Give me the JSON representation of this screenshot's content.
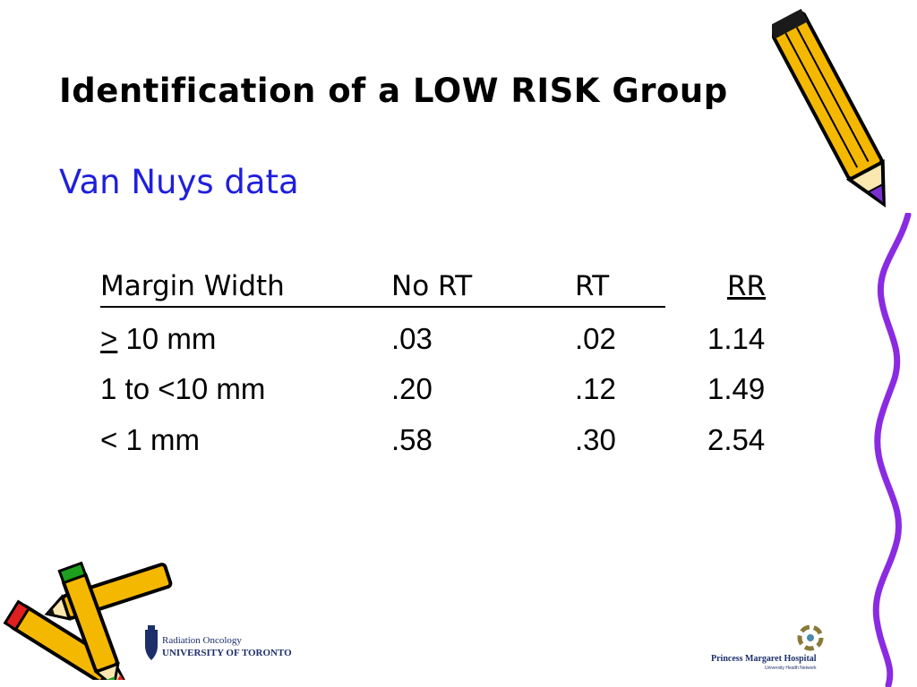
{
  "slide": {
    "title": "Identification of a LOW RISK Group",
    "subtitle": "Van Nuys data",
    "colors": {
      "subtitle": "#1f1fdd",
      "squiggle": "#8a2be2",
      "pencil_body": "#f5b800",
      "pencil_tip": "#7a2fd0"
    }
  },
  "table": {
    "headers": [
      "Margin Width",
      "No RT",
      "RT",
      "RR"
    ],
    "rows": [
      {
        "symbol": ">",
        "margin": " 10 mm",
        "no_rt": ".03",
        "rt": ".02",
        "rr": "1.14"
      },
      {
        "symbol": "",
        "margin": "1 to <10 mm",
        "no_rt": ".20",
        "rt": ".12",
        "rr": "1.49"
      },
      {
        "symbol": "",
        "margin": "< 1 mm",
        "no_rt": ".58",
        "rt": ".30",
        "rr": "2.54"
      }
    ]
  },
  "logos": {
    "left": {
      "line1": "Radiation Oncology",
      "line2": "UNIVERSITY OF TORONTO"
    },
    "right": {
      "line1": "Princess Margaret Hospital",
      "line2": "University Health Network"
    }
  }
}
